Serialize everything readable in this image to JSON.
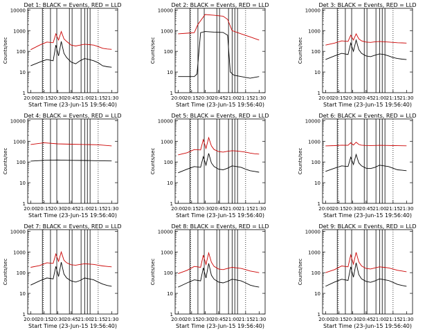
{
  "figure": {
    "xlabel": "Start Time (23-Jun-15 19:56:40)",
    "ylabel": "Counts/sec",
    "x_ticks": [
      "20:00",
      "20:15",
      "20:30",
      "20:45",
      "21:00",
      "21:15",
      "21:30"
    ],
    "y_ticks": [
      "1",
      "10",
      "100",
      "1000",
      "10000"
    ],
    "series_colors": {
      "events": "#000000",
      "lld": "#cc0000"
    }
  },
  "chart_data": [
    {
      "type": "line",
      "title": "Det 1: BLACK = Events, RED = LLD",
      "ylim": [
        1,
        12000
      ],
      "xlim": [
        "19:56:40",
        "21:36:40"
      ],
      "yscale": "log",
      "series": [
        {
          "color": "#000000",
          "x": [
            "20:00",
            "20:10",
            "20:18",
            "20:25",
            "20:28",
            "20:31",
            "20:34",
            "20:37",
            "20:40",
            "20:45",
            "20:50",
            "20:55",
            "21:00",
            "21:05",
            "21:10",
            "21:15",
            "21:20",
            "21:25",
            "21:30"
          ],
          "values": [
            20,
            30,
            40,
            35,
            200,
            60,
            300,
            80,
            50,
            30,
            25,
            35,
            45,
            40,
            35,
            28,
            20,
            18,
            17
          ]
        },
        {
          "color": "#cc0000",
          "x": [
            "20:00",
            "20:10",
            "20:18",
            "20:25",
            "20:28",
            "20:31",
            "20:34",
            "20:37",
            "20:40",
            "20:45",
            "20:50",
            "20:55",
            "21:00",
            "21:05",
            "21:10",
            "21:15",
            "21:20",
            "21:25",
            "21:30"
          ],
          "values": [
            120,
            200,
            280,
            260,
            700,
            350,
            900,
            400,
            300,
            200,
            180,
            200,
            220,
            210,
            200,
            170,
            140,
            130,
            125
          ]
        }
      ]
    },
    {
      "type": "line",
      "title": "Det 2: BLACK = Events, RED = LLD",
      "ylim": [
        1,
        12000
      ],
      "xlim": [
        "19:56:40",
        "21:36:40"
      ],
      "yscale": "log",
      "series": [
        {
          "color": "#000000",
          "x": [
            "20:00",
            "20:10",
            "20:18",
            "20:21",
            "20:25",
            "20:30",
            "20:40",
            "20:50",
            "20:55",
            "20:58",
            "21:02",
            "21:10",
            "21:20",
            "21:30"
          ],
          "values": [
            6,
            6,
            6,
            8,
            800,
            900,
            850,
            820,
            600,
            10,
            7,
            6,
            5,
            6
          ]
        },
        {
          "color": "#cc0000",
          "x": [
            "20:00",
            "20:10",
            "20:18",
            "20:22",
            "20:30",
            "20:40",
            "20:50",
            "20:55",
            "21:00",
            "21:10",
            "21:20",
            "21:30"
          ],
          "values": [
            700,
            750,
            800,
            2000,
            6000,
            5500,
            5000,
            3500,
            1000,
            700,
            500,
            350
          ]
        }
      ]
    },
    {
      "type": "line",
      "title": "Det 3: BLACK = Events, RED = LLD",
      "ylim": [
        1,
        12000
      ],
      "xlim": [
        "19:56:40",
        "21:36:40"
      ],
      "yscale": "log",
      "series": [
        {
          "color": "#000000",
          "x": [
            "20:00",
            "20:10",
            "20:18",
            "20:25",
            "20:28",
            "20:31",
            "20:34",
            "20:37",
            "20:40",
            "20:45",
            "20:50",
            "20:55",
            "21:00",
            "21:05",
            "21:10",
            "21:15",
            "21:20",
            "21:25",
            "21:30"
          ],
          "values": [
            40,
            60,
            80,
            70,
            250,
            100,
            350,
            120,
            80,
            60,
            55,
            65,
            75,
            70,
            60,
            50,
            45,
            42,
            40
          ]
        },
        {
          "color": "#cc0000",
          "x": [
            "20:00",
            "20:10",
            "20:18",
            "20:25",
            "20:28",
            "20:31",
            "20:34",
            "20:37",
            "20:40",
            "20:45",
            "20:50",
            "20:55",
            "21:00",
            "21:05",
            "21:10",
            "21:15",
            "21:20",
            "21:25",
            "21:30"
          ],
          "values": [
            200,
            250,
            320,
            300,
            600,
            350,
            700,
            400,
            320,
            280,
            270,
            290,
            300,
            290,
            280,
            270,
            260,
            255,
            250
          ]
        }
      ]
    },
    {
      "type": "line",
      "title": "Det 4: BLACK = Events, RED = LLD",
      "ylim": [
        1,
        12000
      ],
      "xlim": [
        "19:56:40",
        "21:36:40"
      ],
      "yscale": "log",
      "series": [
        {
          "color": "#000000",
          "x": [
            "20:00",
            "20:15",
            "20:30",
            "20:45",
            "21:00",
            "21:15",
            "21:30"
          ],
          "values": [
            110,
            120,
            125,
            120,
            118,
            115,
            112
          ]
        },
        {
          "color": "#cc0000",
          "x": [
            "20:00",
            "20:15",
            "20:30",
            "20:45",
            "21:00",
            "21:15",
            "21:30"
          ],
          "values": [
            700,
            850,
            750,
            720,
            700,
            680,
            600
          ]
        }
      ]
    },
    {
      "type": "line",
      "title": "Det 5: BLACK = Events, RED = LLD",
      "ylim": [
        1,
        12000
      ],
      "xlim": [
        "19:56:40",
        "21:36:40"
      ],
      "yscale": "log",
      "series": [
        {
          "color": "#000000",
          "x": [
            "20:00",
            "20:10",
            "20:18",
            "20:25",
            "20:28",
            "20:31",
            "20:34",
            "20:37",
            "20:40",
            "20:45",
            "20:50",
            "20:55",
            "21:00",
            "21:05",
            "21:10",
            "21:15",
            "21:20",
            "21:25",
            "21:30"
          ],
          "values": [
            30,
            45,
            60,
            55,
            180,
            70,
            260,
            90,
            60,
            45,
            42,
            50,
            65,
            60,
            55,
            45,
            38,
            35,
            32
          ]
        },
        {
          "color": "#cc0000",
          "x": [
            "20:00",
            "20:10",
            "20:18",
            "20:25",
            "20:28",
            "20:31",
            "20:34",
            "20:37",
            "20:40",
            "20:45",
            "20:50",
            "20:55",
            "21:00",
            "21:05",
            "21:10",
            "21:15",
            "21:20",
            "21:25",
            "21:30"
          ],
          "values": [
            220,
            280,
            400,
            380,
            1200,
            450,
            1500,
            600,
            400,
            320,
            300,
            330,
            350,
            340,
            320,
            300,
            270,
            250,
            240
          ]
        }
      ]
    },
    {
      "type": "line",
      "title": "Det 6: BLACK = Events, RED = LLD",
      "ylim": [
        1,
        12000
      ],
      "xlim": [
        "19:56:40",
        "21:36:40"
      ],
      "yscale": "log",
      "series": [
        {
          "color": "#000000",
          "x": [
            "20:00",
            "20:10",
            "20:18",
            "20:25",
            "20:28",
            "20:31",
            "20:34",
            "20:37",
            "20:40",
            "20:45",
            "20:50",
            "20:55",
            "21:00",
            "21:05",
            "21:10",
            "21:15",
            "21:20",
            "21:25",
            "21:30"
          ],
          "values": [
            35,
            50,
            65,
            60,
            170,
            75,
            230,
            90,
            65,
            50,
            48,
            55,
            70,
            65,
            60,
            50,
            42,
            40,
            38
          ]
        },
        {
          "color": "#cc0000",
          "x": [
            "20:00",
            "20:10",
            "20:18",
            "20:25",
            "20:28",
            "20:31",
            "20:34",
            "20:37",
            "20:40",
            "20:45",
            "20:50",
            "20:55",
            "21:00",
            "21:05",
            "21:10",
            "21:15",
            "21:20",
            "21:25",
            "21:30"
          ],
          "values": [
            600,
            620,
            650,
            640,
            850,
            660,
            900,
            700,
            650,
            630,
            625,
            630,
            640,
            635,
            630,
            620,
            615,
            610,
            605
          ]
        }
      ]
    },
    {
      "type": "line",
      "title": "Det 7: BLACK = Events, RED = LLD",
      "ylim": [
        1,
        12000
      ],
      "xlim": [
        "19:56:40",
        "21:36:40"
      ],
      "yscale": "log",
      "series": [
        {
          "color": "#000000",
          "x": [
            "20:00",
            "20:10",
            "20:18",
            "20:25",
            "20:28",
            "20:31",
            "20:34",
            "20:37",
            "20:40",
            "20:45",
            "20:50",
            "20:55",
            "21:00",
            "21:05",
            "21:10",
            "21:15",
            "21:20",
            "21:25",
            "21:30"
          ],
          "values": [
            25,
            40,
            55,
            50,
            200,
            65,
            320,
            85,
            55,
            40,
            35,
            42,
            55,
            50,
            45,
            35,
            28,
            24,
            22
          ]
        },
        {
          "color": "#cc0000",
          "x": [
            "20:00",
            "20:10",
            "20:18",
            "20:25",
            "20:28",
            "20:31",
            "20:34",
            "20:37",
            "20:40",
            "20:45",
            "20:50",
            "20:55",
            "21:00",
            "21:05",
            "21:10",
            "21:15",
            "21:20",
            "21:25",
            "21:30"
          ],
          "values": [
            180,
            220,
            300,
            280,
            800,
            350,
            1000,
            400,
            300,
            240,
            230,
            250,
            270,
            260,
            250,
            230,
            210,
            200,
            190
          ]
        }
      ]
    },
    {
      "type": "line",
      "title": "Det 8: BLACK = Events, RED = LLD",
      "ylim": [
        1,
        12000
      ],
      "xlim": [
        "19:56:40",
        "21:36:40"
      ],
      "yscale": "log",
      "series": [
        {
          "color": "#000000",
          "x": [
            "20:00",
            "20:10",
            "20:18",
            "20:25",
            "20:28",
            "20:31",
            "20:34",
            "20:37",
            "20:40",
            "20:45",
            "20:50",
            "20:55",
            "21:00",
            "21:05",
            "21:10",
            "21:15",
            "21:20",
            "21:25",
            "21:30"
          ],
          "values": [
            20,
            32,
            45,
            40,
            170,
            55,
            280,
            75,
            48,
            35,
            32,
            38,
            48,
            44,
            40,
            32,
            25,
            22,
            20
          ]
        },
        {
          "color": "#cc0000",
          "x": [
            "20:00",
            "20:10",
            "20:18",
            "20:25",
            "20:28",
            "20:31",
            "20:34",
            "20:37",
            "20:40",
            "20:45",
            "20:50",
            "20:55",
            "21:00",
            "21:05",
            "21:10",
            "21:15",
            "21:20",
            "21:25",
            "21:30"
          ],
          "values": [
            90,
            130,
            200,
            180,
            700,
            250,
            900,
            320,
            200,
            150,
            140,
            160,
            180,
            170,
            160,
            140,
            120,
            110,
            100
          ]
        }
      ]
    },
    {
      "type": "line",
      "title": "Det 9: BLACK = Events, RED = LLD",
      "ylim": [
        1,
        12000
      ],
      "xlim": [
        "19:56:40",
        "21:36:40"
      ],
      "yscale": "log",
      "series": [
        {
          "color": "#000000",
          "x": [
            "20:00",
            "20:10",
            "20:18",
            "20:25",
            "20:28",
            "20:31",
            "20:34",
            "20:37",
            "20:40",
            "20:45",
            "20:50",
            "20:55",
            "21:00",
            "21:05",
            "21:10",
            "21:15",
            "21:20",
            "21:25",
            "21:30"
          ],
          "values": [
            22,
            35,
            48,
            42,
            190,
            60,
            300,
            80,
            50,
            38,
            34,
            40,
            50,
            46,
            42,
            34,
            27,
            24,
            22
          ]
        },
        {
          "color": "#cc0000",
          "x": [
            "20:00",
            "20:10",
            "20:18",
            "20:25",
            "20:28",
            "20:31",
            "20:34",
            "20:37",
            "20:40",
            "20:45",
            "20:50",
            "20:55",
            "21:00",
            "21:05",
            "21:10",
            "21:15",
            "21:20",
            "21:25",
            "21:30"
          ],
          "values": [
            100,
            140,
            210,
            190,
            720,
            260,
            950,
            330,
            210,
            160,
            150,
            170,
            190,
            180,
            170,
            150,
            130,
            120,
            110
          ]
        }
      ]
    }
  ]
}
